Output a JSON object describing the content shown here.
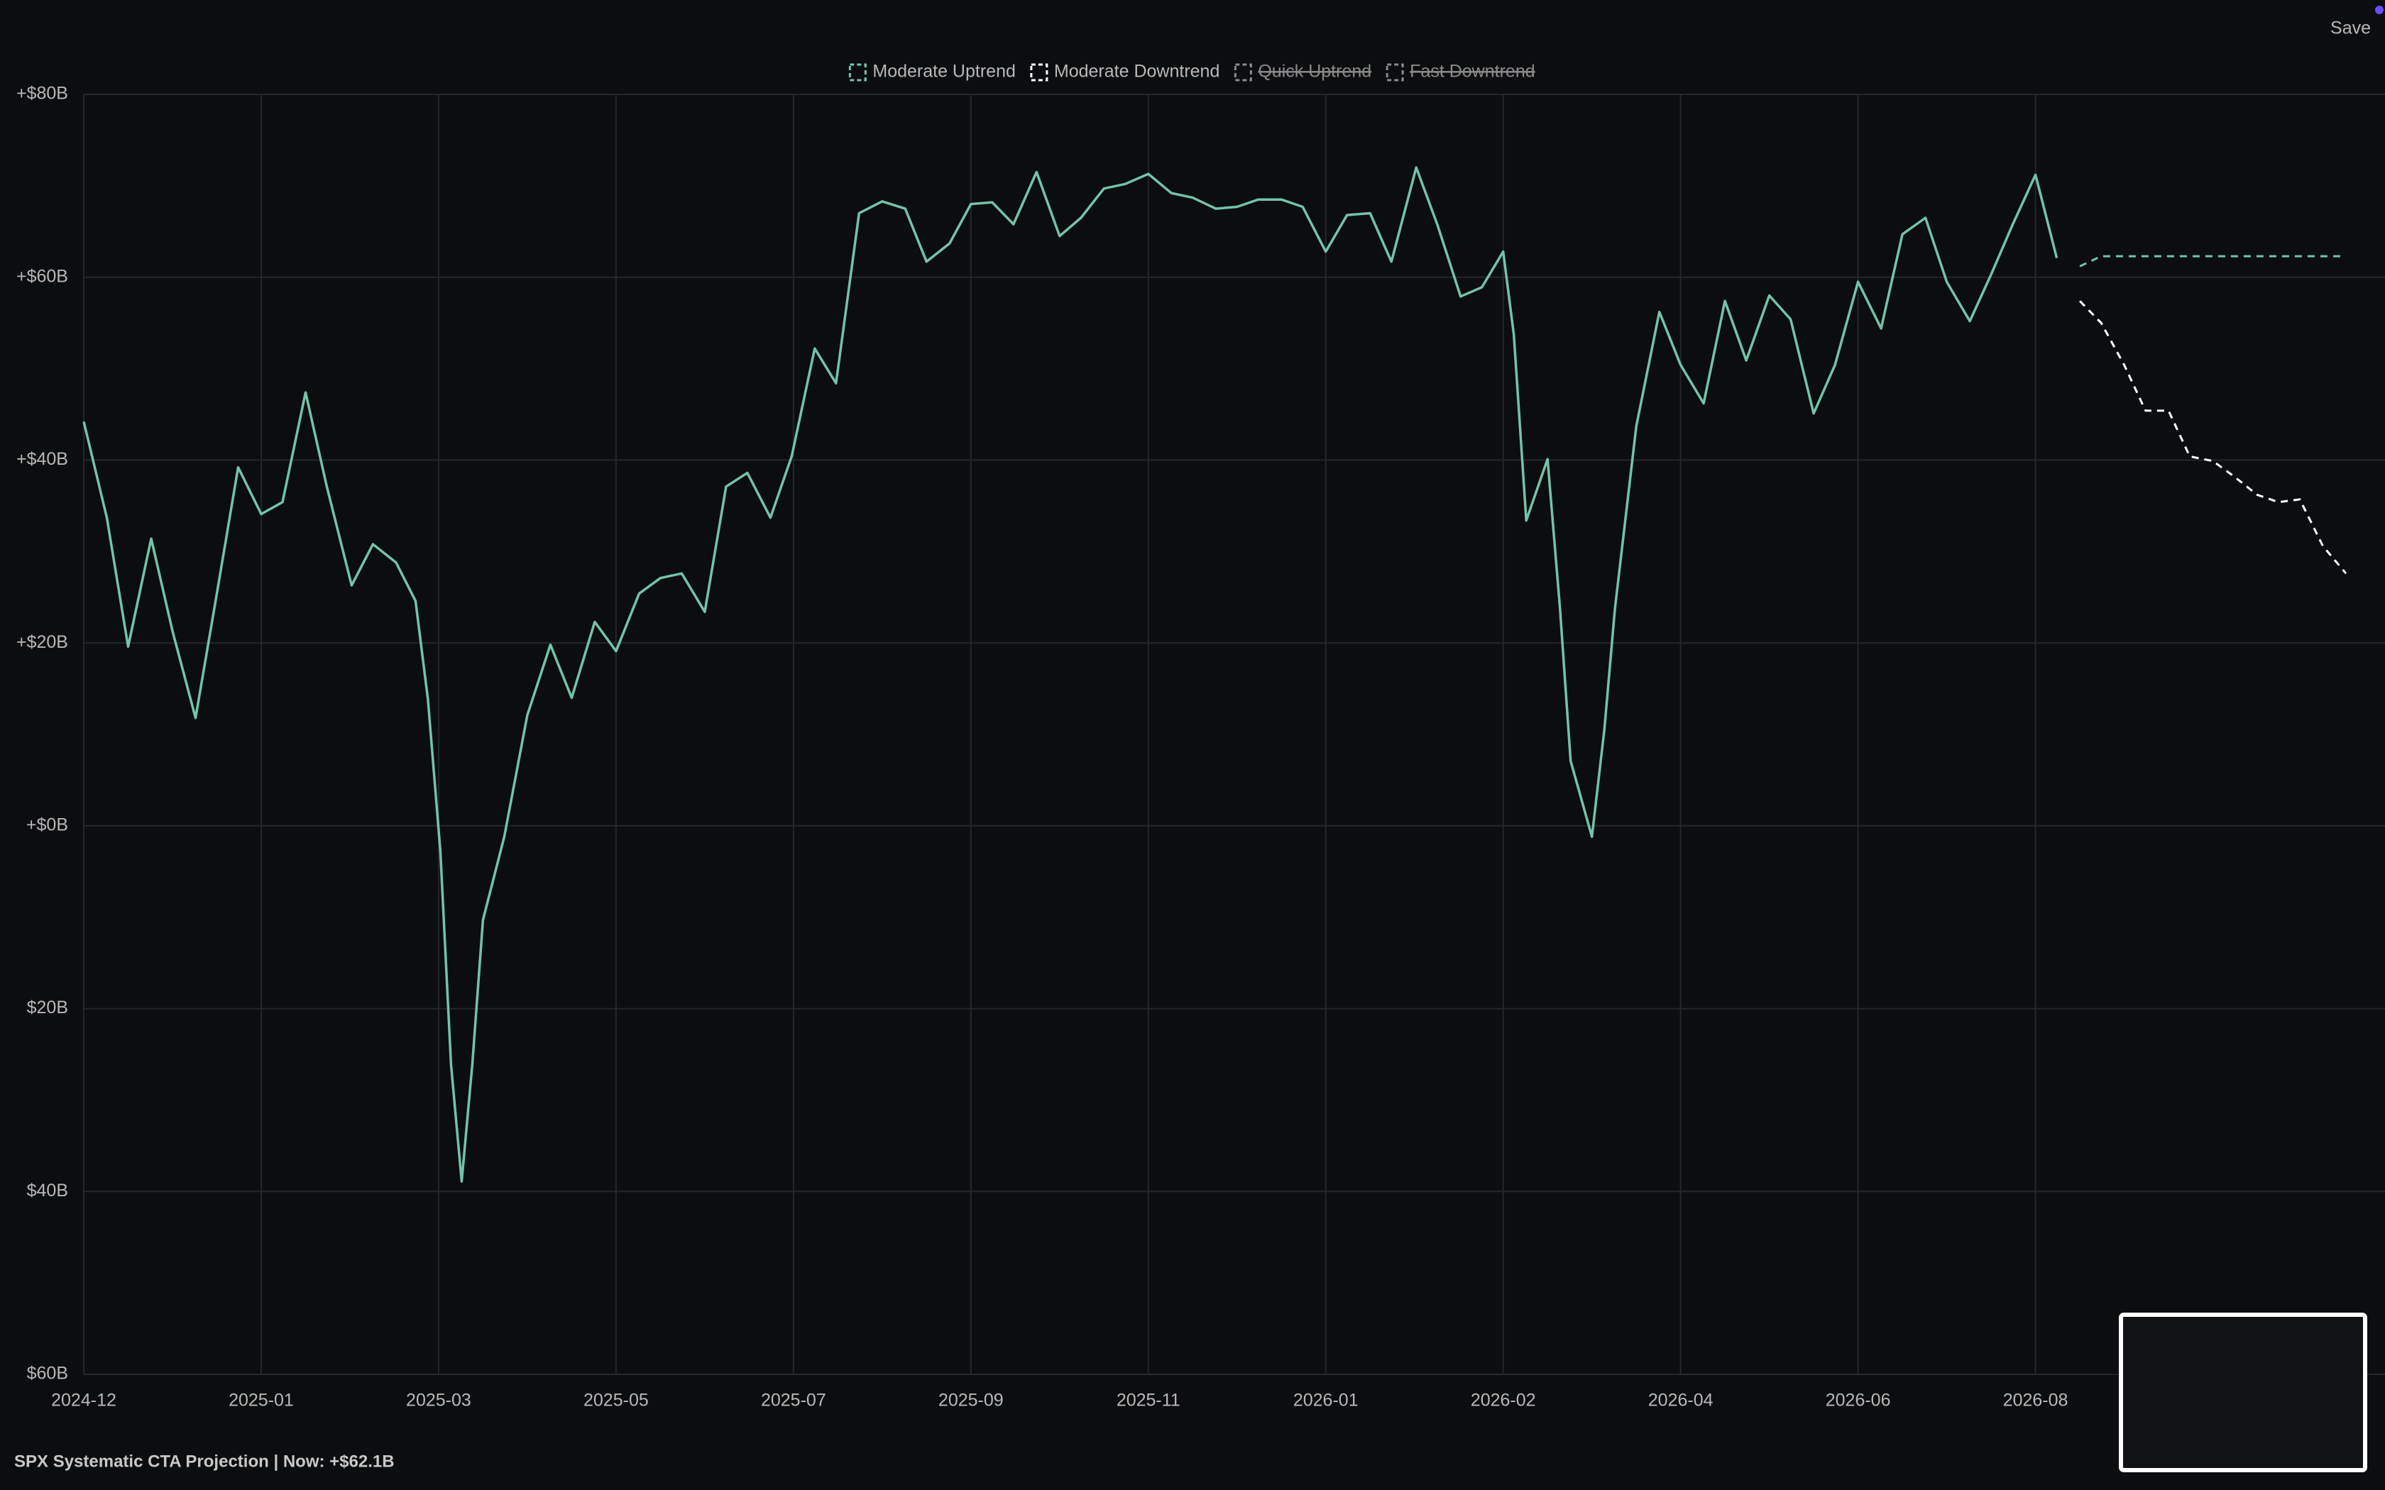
{
  "toolbar": {
    "save": "Save"
  },
  "chart_data": {
    "type": "line",
    "title": "SPX Systematic CTA Projection | Now: +$62.1B",
    "grid": true,
    "legend": "top",
    "xlim": [
      0,
      12.97
    ],
    "xticks": [
      {
        "value": 0,
        "label": "2024-12"
      },
      {
        "value": 1,
        "label": "2025-01"
      },
      {
        "value": 2,
        "label": "2025-03"
      },
      {
        "value": 3,
        "label": "2025-05"
      },
      {
        "value": 4,
        "label": "2025-07"
      },
      {
        "value": 5,
        "label": "2025-09"
      },
      {
        "value": 6,
        "label": "2025-11"
      },
      {
        "value": 7,
        "label": "2026-01"
      },
      {
        "value": 8,
        "label": "2026-02"
      },
      {
        "value": 9,
        "label": "2026-04"
      },
      {
        "value": 10,
        "label": "2026-06"
      },
      {
        "value": 11,
        "label": "2026-08"
      }
    ],
    "ylim": [
      -60,
      80
    ],
    "yticks": [
      {
        "value": 80,
        "label": "+$80B"
      },
      {
        "value": 60,
        "label": "+$60B"
      },
      {
        "value": 40,
        "label": "+$40B"
      },
      {
        "value": 20,
        "label": "+$20B"
      },
      {
        "value": 0,
        "label": "+$0B"
      },
      {
        "value": -20,
        "label": "$20B"
      },
      {
        "value": -40,
        "label": "$40B"
      },
      {
        "value": -60,
        "label": "$60B"
      }
    ],
    "series": [
      {
        "color": "#72c4a8",
        "dashed": false,
        "x": [
          0,
          0.13,
          0.25,
          0.38,
          0.5,
          0.63,
          0.75,
          0.87,
          1,
          1.12,
          1.25,
          1.37,
          1.51,
          1.63,
          1.76,
          1.87,
          1.94,
          2.01,
          2.07,
          2.13,
          2.19,
          2.25,
          2.37,
          2.5,
          2.63,
          2.75,
          2.88,
          3,
          3.13,
          3.25,
          3.37,
          3.5,
          3.62,
          3.74,
          3.87,
          3.99,
          4.12,
          4.24,
          4.37,
          4.5,
          4.63,
          4.75,
          4.88,
          5,
          5.12,
          5.24,
          5.37,
          5.5,
          5.62,
          5.75,
          5.87,
          6,
          6.13,
          6.25,
          6.38,
          6.5,
          6.62,
          6.75,
          6.87,
          7,
          7.12,
          7.25,
          7.37,
          7.51,
          7.63,
          7.76,
          7.88,
          8,
          8.06,
          8.13,
          8.25,
          8.32,
          8.38,
          8.5,
          8.57,
          8.63,
          8.75,
          8.88,
          9,
          9.13,
          9.25,
          9.37,
          9.5,
          9.62,
          9.75,
          9.87,
          10,
          10.13,
          10.25,
          10.38,
          10.5,
          10.63,
          10.75,
          10.87,
          11,
          11.12
        ],
        "values": [
          44.2,
          33.7,
          19.6,
          31.4,
          21.3,
          11.8,
          25.4,
          39.2,
          34.1,
          35.4,
          47.4,
          37.1,
          26.3,
          30.8,
          28.8,
          24.6,
          13.8,
          -2.8,
          -26.1,
          -38.9,
          -26.1,
          -10.3,
          -1.2,
          12.1,
          19.8,
          14.0,
          22.3,
          19.1,
          25.4,
          27.1,
          27.6,
          23.4,
          37.1,
          38.6,
          33.7,
          40.4,
          52.2,
          48.4,
          67.0,
          68.3,
          67.5,
          61.7,
          63.7,
          68.0,
          68.2,
          65.8,
          71.5,
          64.5,
          66.5,
          69.7,
          70.2,
          71.3,
          69.2,
          68.7,
          67.5,
          67.7,
          68.5,
          68.5,
          67.7,
          62.8,
          66.8,
          67.0,
          61.7,
          72.0,
          65.7,
          57.9,
          58.9,
          62.8,
          53.7,
          33.4,
          40.1,
          23.8,
          7.1,
          -1.2,
          10.5,
          23.8,
          43.7,
          56.2,
          50.4,
          46.2,
          57.4,
          50.9,
          58.0,
          55.4,
          45.1,
          50.4,
          59.5,
          54.4,
          64.7,
          66.5,
          59.5,
          55.2,
          60.3,
          65.7,
          71.2,
          62.1
        ]
      },
      {
        "name": "Moderate Uptrend",
        "color": "#72c4a8",
        "dashed": true,
        "hidden": false,
        "x": [
          11.25,
          11.37,
          11.5,
          12.73
        ],
        "values": [
          61.2,
          62.3,
          62.3,
          62.3
        ]
      },
      {
        "name": "Moderate Downtrend",
        "color": "#ffffff",
        "dashed": true,
        "hidden": false,
        "x": [
          11.25,
          11.37,
          11.5,
          11.62,
          11.75,
          11.87,
          12,
          12.12,
          12.25,
          12.37,
          12.49,
          12.62,
          12.75
        ],
        "values": [
          57.4,
          55.0,
          50.4,
          45.4,
          45.4,
          40.4,
          39.9,
          38.2,
          36.2,
          35.4,
          35.7,
          30.6,
          27.6
        ]
      },
      {
        "name": "Quick Uptrend",
        "color": "#8a8a8a",
        "dashed": true,
        "hidden": true,
        "x": [],
        "values": []
      },
      {
        "name": "Fast Downtrend",
        "color": "#8a8a8a",
        "dashed": true,
        "hidden": true,
        "x": [],
        "values": []
      }
    ]
  }
}
